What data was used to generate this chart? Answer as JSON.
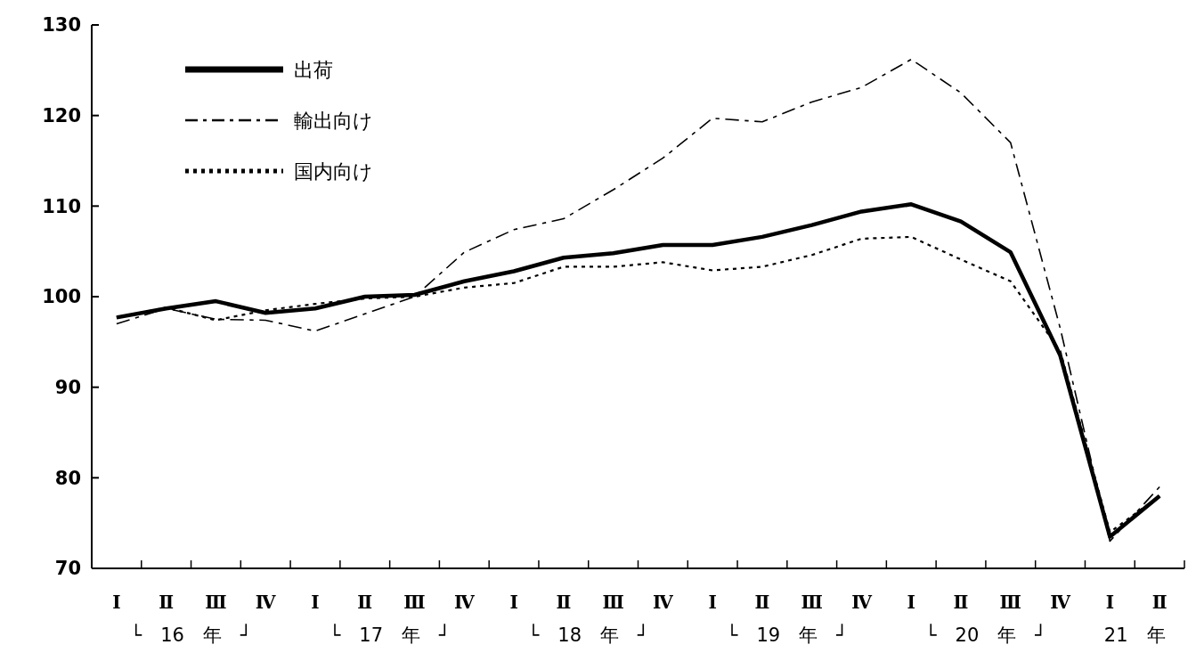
{
  "chart_data": {
    "type": "line",
    "categories": [
      "Ⅰ",
      "Ⅱ",
      "Ⅲ",
      "Ⅳ",
      "Ⅰ",
      "Ⅱ",
      "Ⅲ",
      "Ⅳ",
      "Ⅰ",
      "Ⅱ",
      "Ⅲ",
      "Ⅳ",
      "Ⅰ",
      "Ⅱ",
      "Ⅲ",
      "Ⅳ",
      "Ⅰ",
      "Ⅱ",
      "Ⅲ",
      "Ⅳ",
      "Ⅰ",
      "Ⅱ"
    ],
    "series": [
      {
        "name": "出荷",
        "color": "#000000",
        "line_style": "solid",
        "values": [
          97.7,
          98.7,
          99.5,
          98.2,
          98.7,
          100.0,
          100.2,
          101.7,
          102.8,
          104.3,
          104.8,
          105.7,
          105.7,
          106.6,
          107.9,
          109.4,
          110.2,
          108.3,
          104.9,
          93.5,
          73.5,
          78
        ]
      },
      {
        "name": "輸出向け",
        "color": "#000000",
        "line_style": "dashed",
        "values": [
          97,
          98.7,
          97.5,
          97.4,
          96.2,
          98.1,
          100,
          104.9,
          107.4,
          108.6,
          111.8,
          115.3,
          119.7,
          119.3,
          121.5,
          123.1,
          126.2,
          122.5,
          117,
          96.5,
          73,
          79
        ]
      },
      {
        "name": "国内向け",
        "color": "#000000",
        "line_style": "dotted",
        "values": [
          97.7,
          98.8,
          97.4,
          98.5,
          99.2,
          99.8,
          100,
          101,
          101.5,
          103.3,
          103.3,
          103.8,
          102.9,
          103.3,
          104.6,
          106.4,
          106.6,
          104.1,
          101.7,
          94,
          74,
          78
        ]
      }
    ],
    "ylim": [
      70,
      130
    ],
    "yticks": [
      70,
      80,
      90,
      100,
      110,
      120,
      130
    ],
    "grid": false,
    "legend": "top left",
    "annotations": [
      "└　16　年　┘",
      "└　17　年　┘",
      "└　18　年　┘",
      "└　19　年　┘",
      "└　20　年　┘",
      "21　年"
    ]
  }
}
